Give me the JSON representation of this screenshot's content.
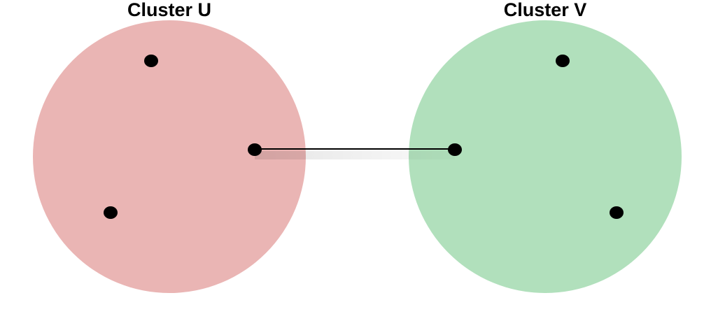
{
  "diagram": {
    "clusters": [
      {
        "id": "U",
        "title": "Cluster U",
        "color": "#eab5b4"
      },
      {
        "id": "V",
        "title": "Cluster V",
        "color": "#b1e0bc"
      }
    ],
    "nodes": [
      {
        "id": "u1",
        "cluster": "U"
      },
      {
        "id": "u2",
        "cluster": "U"
      },
      {
        "id": "u3",
        "cluster": "U"
      },
      {
        "id": "v1",
        "cluster": "V"
      },
      {
        "id": "v2",
        "cluster": "V"
      },
      {
        "id": "v3",
        "cluster": "V"
      }
    ],
    "edges": [
      {
        "from": "u2",
        "to": "v2"
      }
    ],
    "node_color": "#000000",
    "edge_color": "#000000"
  }
}
